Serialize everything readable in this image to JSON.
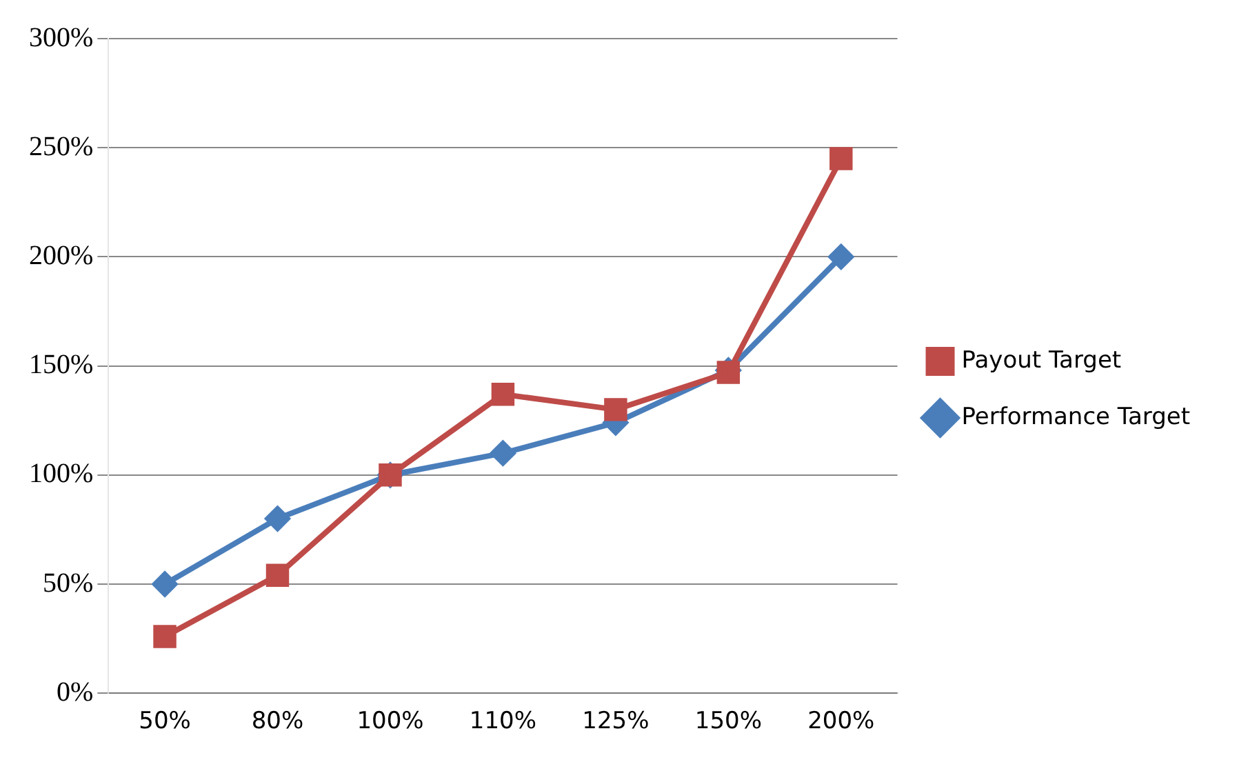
{
  "chart_data": {
    "type": "line",
    "categories": [
      "50%",
      "80%",
      "100%",
      "110%",
      "125%",
      "150%",
      "200%"
    ],
    "series": [
      {
        "name": "Performance Target",
        "color": "#4a7ebb",
        "marker": "diamond",
        "values": [
          50,
          80,
          100,
          110,
          124,
          148,
          200
        ]
      },
      {
        "name": "Payout Target",
        "color": "#be4b48",
        "marker": "square",
        "values": [
          26,
          54,
          100,
          137,
          130,
          147,
          245
        ]
      }
    ],
    "ylim": [
      0,
      300
    ],
    "yticks": [
      {
        "value": 0,
        "label": "0%"
      },
      {
        "value": 50,
        "label": "50%"
      },
      {
        "value": 100,
        "label": "100%"
      },
      {
        "value": 150,
        "label": "150%"
      },
      {
        "value": 200,
        "label": "200%"
      },
      {
        "value": 250,
        "label": "250%"
      },
      {
        "value": 300,
        "label": "300%"
      }
    ],
    "grid": "y",
    "legend": "right"
  }
}
